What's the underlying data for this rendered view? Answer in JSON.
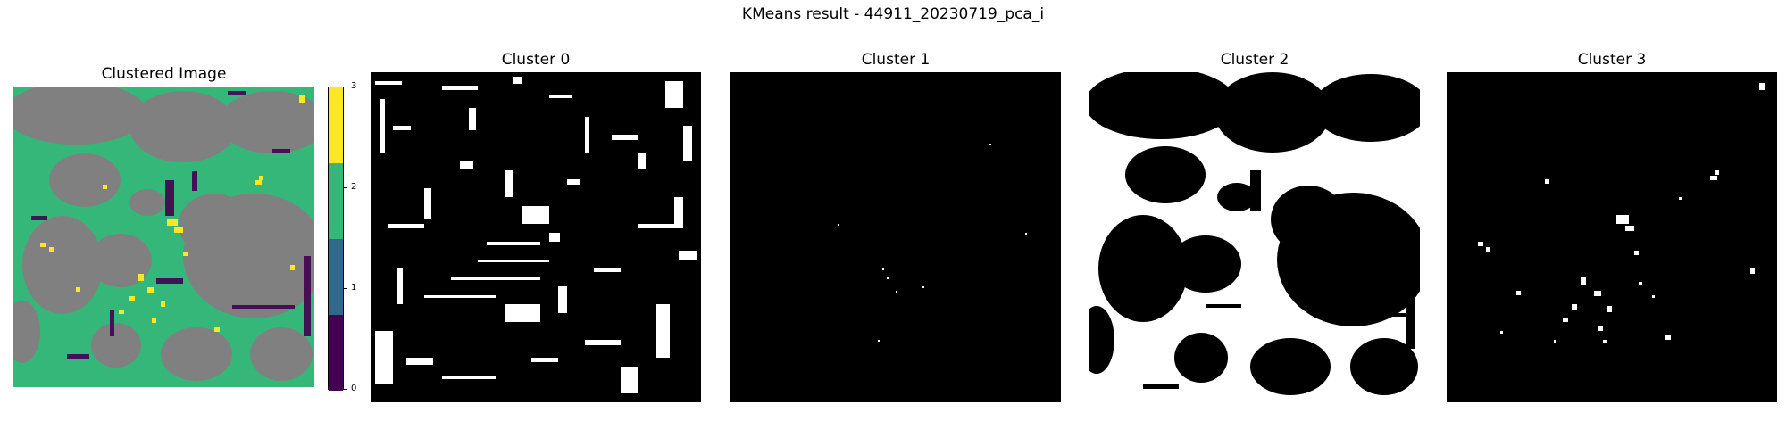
{
  "figure": {
    "suptitle": "KMeans result - 44911_20230719_pca_i"
  },
  "colors": {
    "cluster_0": "#440154",
    "cluster_1": "#31688e",
    "cluster_2": "#35b779",
    "cluster_3": "#fde725",
    "background_gray": "#808080",
    "mask_on": "#ffffff",
    "mask_off": "#000000"
  },
  "chart_data": [
    {
      "type": "heatmap",
      "title": "Clustered Image",
      "colormap": "viridis",
      "colorbar": {
        "ticks": [
          "0",
          "1",
          "2",
          "3"
        ],
        "range": [
          0,
          3
        ]
      },
      "grid": false,
      "axes_visible": false
    },
    {
      "type": "heatmap",
      "title": "Cluster 0",
      "colormap": "gray",
      "axes_visible": false
    },
    {
      "type": "heatmap",
      "title": "Cluster 1",
      "colormap": "gray",
      "axes_visible": false
    },
    {
      "type": "heatmap",
      "title": "Cluster 2",
      "colormap": "gray",
      "axes_visible": false
    },
    {
      "type": "heatmap",
      "title": "Cluster 3",
      "colormap": "gray",
      "axes_visible": false
    }
  ]
}
